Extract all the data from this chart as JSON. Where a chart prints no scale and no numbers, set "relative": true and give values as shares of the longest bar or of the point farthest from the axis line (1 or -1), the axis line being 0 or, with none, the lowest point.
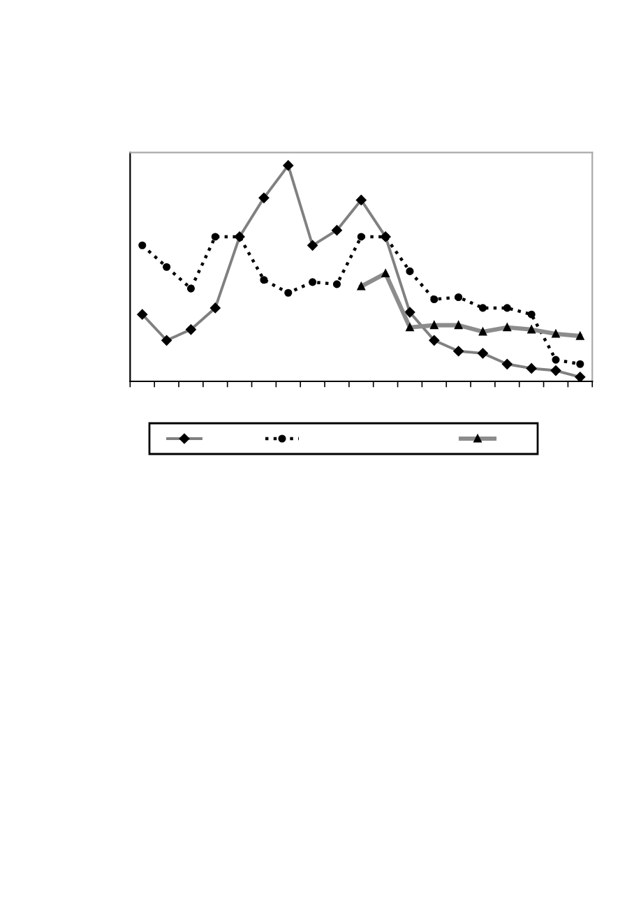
{
  "chart_data": {
    "type": "line",
    "relative": true,
    "categories": [
      null,
      null,
      null,
      null,
      null,
      null,
      null,
      null,
      null,
      null,
      null,
      null,
      null,
      null,
      null,
      null,
      null,
      null,
      null
    ],
    "series": [
      {
        "color": "#808080",
        "marker": "diamond",
        "line_style": "solid",
        "values": [
          0.31,
          0.19,
          0.24,
          0.34,
          0.67,
          0.85,
          1,
          0.63,
          0.7,
          0.84,
          0.67,
          0.32,
          0.19,
          0.14,
          0.13,
          0.08,
          0.06,
          0.05,
          0.02
        ]
      },
      {
        "color": "#000000",
        "marker": "circle",
        "line_style": "dotted",
        "values": [
          0.63,
          0.53,
          0.43,
          0.67,
          0.67,
          0.47,
          0.41,
          0.46,
          0.45,
          0.67,
          0.67,
          0.51,
          0.38,
          0.39,
          0.34,
          0.34,
          0.31,
          0.1,
          0.08
        ]
      },
      {
        "color": "#8c8c8c",
        "marker": "triangle",
        "line_style": "solid",
        "values": [
          null,
          null,
          null,
          null,
          null,
          null,
          null,
          null,
          null,
          0.44,
          0.5,
          0.25,
          0.26,
          0.26,
          0.23,
          0.25,
          0.24,
          0.22,
          0.21
        ]
      }
    ],
    "grid": false
  }
}
